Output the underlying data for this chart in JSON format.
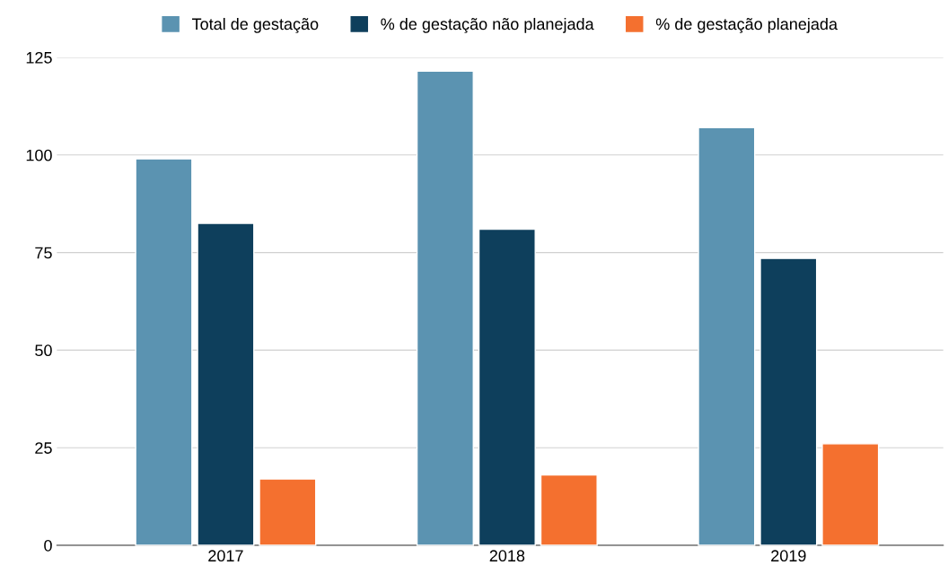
{
  "chart_data": {
    "type": "bar",
    "categories": [
      "2017",
      "2018",
      "2019"
    ],
    "series": [
      {
        "name": "Total de gestação",
        "color": "#5b93b1",
        "values": [
          99,
          121.5,
          107
        ]
      },
      {
        "name": "% de gestação não planejada",
        "color": "#0e3f5c",
        "values": [
          82.5,
          81,
          73.5
        ]
      },
      {
        "name": "% de gestação planejada",
        "color": "#f4702f",
        "values": [
          17,
          18,
          26
        ]
      }
    ],
    "ylim": [
      0,
      125
    ],
    "yticks": [
      0,
      25,
      50,
      75,
      100,
      125
    ],
    "grid": "y",
    "legend": "top"
  }
}
